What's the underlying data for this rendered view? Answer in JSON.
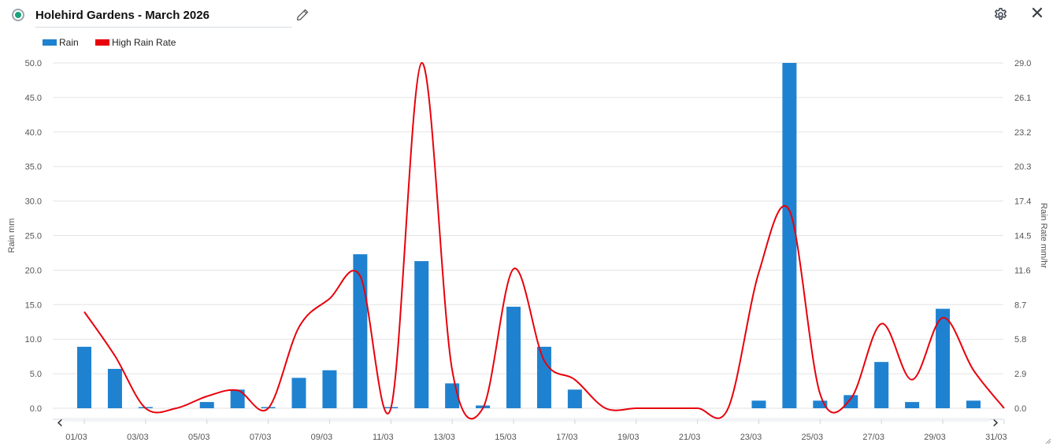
{
  "header": {
    "title": "Holehird Gardens - March 2026",
    "status_icon": "status-dot-icon",
    "edit_icon": "pencil-icon",
    "settings_icon": "gear-icon",
    "close_icon": "close-icon",
    "close_glyph": "✕"
  },
  "legend": [
    {
      "label": "Rain",
      "color": "#1f82d0"
    },
    {
      "label": "High Rain Rate",
      "color": "#e8000b"
    }
  ],
  "navigation": {
    "prev_glyph": "‹",
    "next_glyph": "›",
    "prev_icon": "chevron-left-icon",
    "next_icon": "chevron-right-icon"
  },
  "chart_data": {
    "type": "bar+line",
    "ylabel": "Rain mm",
    "y2label": "Rain Rate mm/hr",
    "ylim": [
      0,
      50
    ],
    "y2lim": [
      0,
      29
    ],
    "yticks": [
      "0.0",
      "5.0",
      "10.0",
      "15.0",
      "20.0",
      "25.0",
      "30.0",
      "35.0",
      "40.0",
      "45.0",
      "50.0"
    ],
    "y2ticks": [
      "0.0",
      "2.9",
      "5.8",
      "8.7",
      "11.6",
      "14.5",
      "17.4",
      "20.3",
      "23.2",
      "26.1",
      "29.0"
    ],
    "categories": [
      "01/03",
      "02/03",
      "03/03",
      "04/03",
      "05/03",
      "06/03",
      "07/03",
      "08/03",
      "09/03",
      "10/03",
      "11/03",
      "12/03",
      "13/03",
      "14/03",
      "15/03",
      "16/03",
      "17/03",
      "18/03",
      "19/03",
      "20/03",
      "21/03",
      "22/03",
      "23/03",
      "24/03",
      "25/03",
      "26/03",
      "27/03",
      "28/03",
      "29/03",
      "30/03",
      "31/03"
    ],
    "xtick_labels": [
      "01/03",
      "03/03",
      "05/03",
      "07/03",
      "09/03",
      "11/03",
      "13/03",
      "15/03",
      "17/03",
      "19/03",
      "21/03",
      "23/03",
      "25/03",
      "27/03",
      "29/03",
      "31/03"
    ],
    "series": [
      {
        "name": "Rain",
        "type": "bar",
        "axis": "left",
        "color": "#1f82d0",
        "values": [
          8.9,
          5.7,
          0.1,
          0,
          0.9,
          2.7,
          0.1,
          4.4,
          5.5,
          22.3,
          0.1,
          21.3,
          3.6,
          0.4,
          14.7,
          8.9,
          2.7,
          0,
          0,
          0,
          0,
          0,
          1.1,
          50.0,
          1.1,
          1.9,
          6.7,
          0.9,
          14.4,
          1.1,
          0
        ]
      },
      {
        "name": "High Rain Rate",
        "type": "line",
        "axis": "right",
        "color": "#e8000b",
        "values": [
          8.1,
          4.4,
          0,
          0,
          1.0,
          1.5,
          0,
          6.8,
          9.2,
          11.1,
          0,
          29.0,
          3.2,
          0,
          11.7,
          4.0,
          2.4,
          0,
          0,
          0,
          0,
          0,
          11.4,
          16.6,
          1.2,
          0.8,
          7.1,
          2.4,
          7.6,
          3.2,
          0
        ]
      }
    ],
    "grid": true,
    "legend_position": "top-left"
  }
}
